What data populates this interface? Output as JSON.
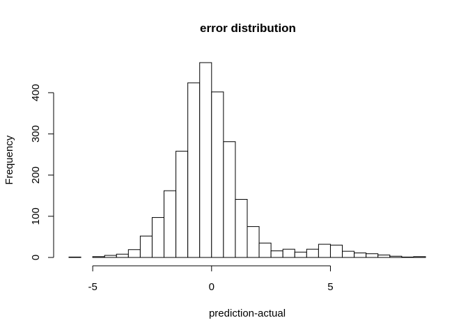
{
  "chart_data": {
    "type": "bar",
    "title": "error distribution",
    "xlabel": "prediction-actual",
    "ylabel": "Frequency",
    "bin_width": 0.5,
    "bins": [
      {
        "start": -6.0,
        "end": -5.5,
        "count": 1
      },
      {
        "start": -5.5,
        "end": -5.0,
        "count": 0
      },
      {
        "start": -5.0,
        "end": -4.5,
        "count": 2
      },
      {
        "start": -4.5,
        "end": -4.0,
        "count": 5
      },
      {
        "start": -4.0,
        "end": -3.5,
        "count": 8
      },
      {
        "start": -3.5,
        "end": -3.0,
        "count": 19
      },
      {
        "start": -3.0,
        "end": -2.5,
        "count": 52
      },
      {
        "start": -2.5,
        "end": -2.0,
        "count": 97
      },
      {
        "start": -2.0,
        "end": -1.5,
        "count": 162
      },
      {
        "start": -1.5,
        "end": -1.0,
        "count": 258
      },
      {
        "start": -1.0,
        "end": -0.5,
        "count": 424
      },
      {
        "start": -0.5,
        "end": 0.0,
        "count": 473
      },
      {
        "start": 0.0,
        "end": 0.5,
        "count": 402
      },
      {
        "start": 0.5,
        "end": 1.0,
        "count": 281
      },
      {
        "start": 1.0,
        "end": 1.5,
        "count": 141
      },
      {
        "start": 1.5,
        "end": 2.0,
        "count": 75
      },
      {
        "start": 2.0,
        "end": 2.5,
        "count": 35
      },
      {
        "start": 2.5,
        "end": 3.0,
        "count": 16
      },
      {
        "start": 3.0,
        "end": 3.5,
        "count": 20
      },
      {
        "start": 3.5,
        "end": 4.0,
        "count": 13
      },
      {
        "start": 4.0,
        "end": 4.5,
        "count": 20
      },
      {
        "start": 4.5,
        "end": 5.0,
        "count": 32
      },
      {
        "start": 5.0,
        "end": 5.5,
        "count": 30
      },
      {
        "start": 5.5,
        "end": 6.0,
        "count": 15
      },
      {
        "start": 6.0,
        "end": 6.5,
        "count": 11
      },
      {
        "start": 6.5,
        "end": 7.0,
        "count": 9
      },
      {
        "start": 7.0,
        "end": 7.5,
        "count": 6
      },
      {
        "start": 7.5,
        "end": 8.0,
        "count": 3
      },
      {
        "start": 8.0,
        "end": 8.5,
        "count": 1
      },
      {
        "start": 8.5,
        "end": 9.0,
        "count": 2
      }
    ],
    "xlim": [
      -6,
      9
    ],
    "ylim": [
      0,
      473
    ],
    "x_ticks": [
      {
        "value": -5,
        "label": "-5"
      },
      {
        "value": 0,
        "label": "0"
      },
      {
        "value": 5,
        "label": "5"
      }
    ],
    "y_ticks": [
      {
        "value": 0,
        "label": "0"
      },
      {
        "value": 100,
        "label": "100"
      },
      {
        "value": 200,
        "label": "200"
      },
      {
        "value": 300,
        "label": "300"
      },
      {
        "value": 400,
        "label": "400"
      }
    ],
    "grid": false,
    "bar_fill": "#ffffff",
    "bar_stroke": "#000000"
  }
}
